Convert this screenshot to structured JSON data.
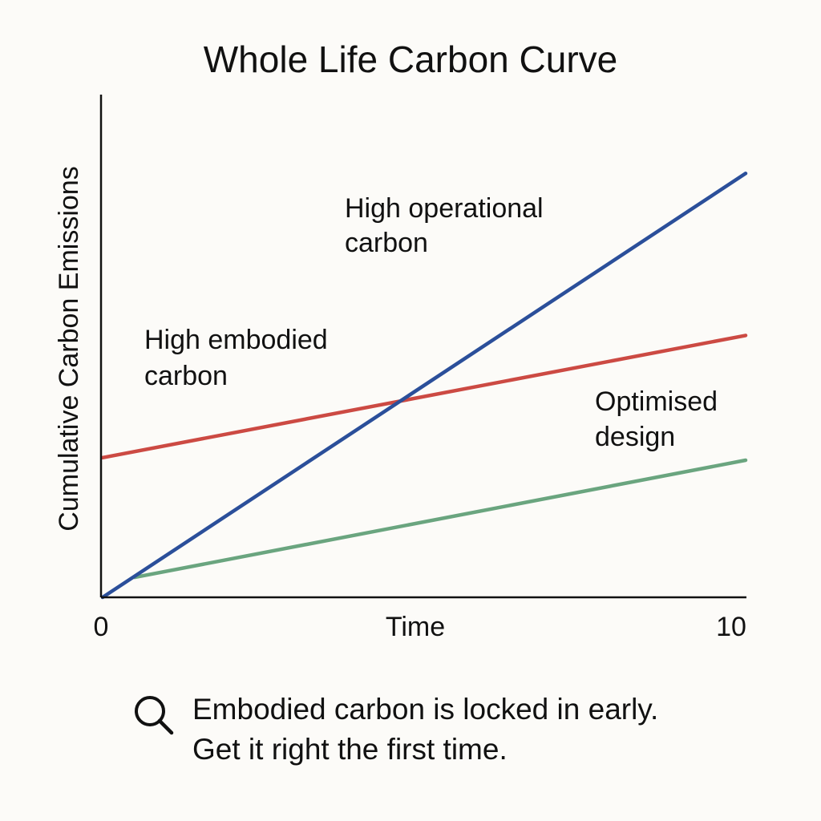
{
  "chart_data": {
    "type": "line",
    "title": "Whole Life Carbon Curve",
    "xlabel": "Time",
    "ylabel": "Cumulative Carbon Emissions",
    "xlim": [
      0,
      10
    ],
    "ylim": [
      0,
      10
    ],
    "x_ticks": [
      "0",
      "10"
    ],
    "grid": false,
    "legend": "none",
    "series": [
      {
        "name": "High operational carbon",
        "label_lines": [
          "High operational",
          "carbon"
        ],
        "color": "#2b4f9a",
        "x": [
          0,
          10
        ],
        "y": [
          0,
          8.5
        ]
      },
      {
        "name": "High embodied carbon",
        "label_lines": [
          "High embodied",
          "carbon"
        ],
        "color": "#cc4a43",
        "x": [
          0,
          10
        ],
        "y": [
          2.8,
          5.25
        ]
      },
      {
        "name": "Optimised design",
        "label_lines": [
          "Optimised",
          "design"
        ],
        "color": "#6aa57f",
        "x": [
          0.5,
          10
        ],
        "y": [
          0.4,
          2.75
        ]
      }
    ]
  },
  "footnote": {
    "icon": "magnifier-icon",
    "line1": "Embodied carbon is locked in early.",
    "line2": "Get it right the first time."
  }
}
